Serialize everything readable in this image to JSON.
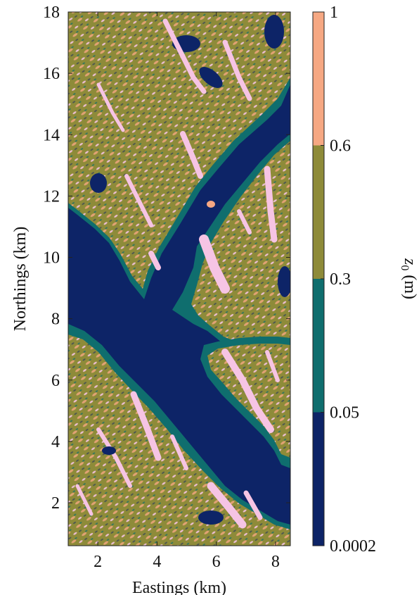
{
  "chart_data": {
    "type": "heatmap",
    "xlabel": "Eastings (km)",
    "ylabel": "Northings (km)",
    "xlim": [
      1.0,
      8.5
    ],
    "ylim": [
      0.6,
      18
    ],
    "xticks": [
      "2",
      "4",
      "6",
      "8"
    ],
    "yticks": [
      "2",
      "4",
      "6",
      "8",
      "10",
      "12",
      "14",
      "16",
      "18"
    ],
    "colorbar": {
      "label_var": "z",
      "label_sub": "0",
      "label_unit": " (m)",
      "ticks": [
        "0.0002",
        "0.05",
        "0.3",
        "0.6",
        "1"
      ],
      "levels": [
        {
          "range": "0.0002–0.05",
          "color": "#0d2467"
        },
        {
          "range": "0.05–0.3",
          "color": "#0f6e6e"
        },
        {
          "range": "0.3–0.6",
          "color": "#8e8b39"
        },
        {
          "range": "0.6–1",
          "color": "#f6a883"
        }
      ],
      "highlight_color": "#f6c4e4"
    },
    "regions": [
      {
        "name": "water",
        "color": "#0d2467"
      },
      {
        "name": "land-north",
        "color": "#8e8b39"
      },
      {
        "name": "land-east",
        "color": "#8e8b39"
      },
      {
        "name": "land-southwest",
        "color": "#8e8b39"
      },
      {
        "name": "land-southeast",
        "color": "#8e8b39"
      }
    ]
  }
}
